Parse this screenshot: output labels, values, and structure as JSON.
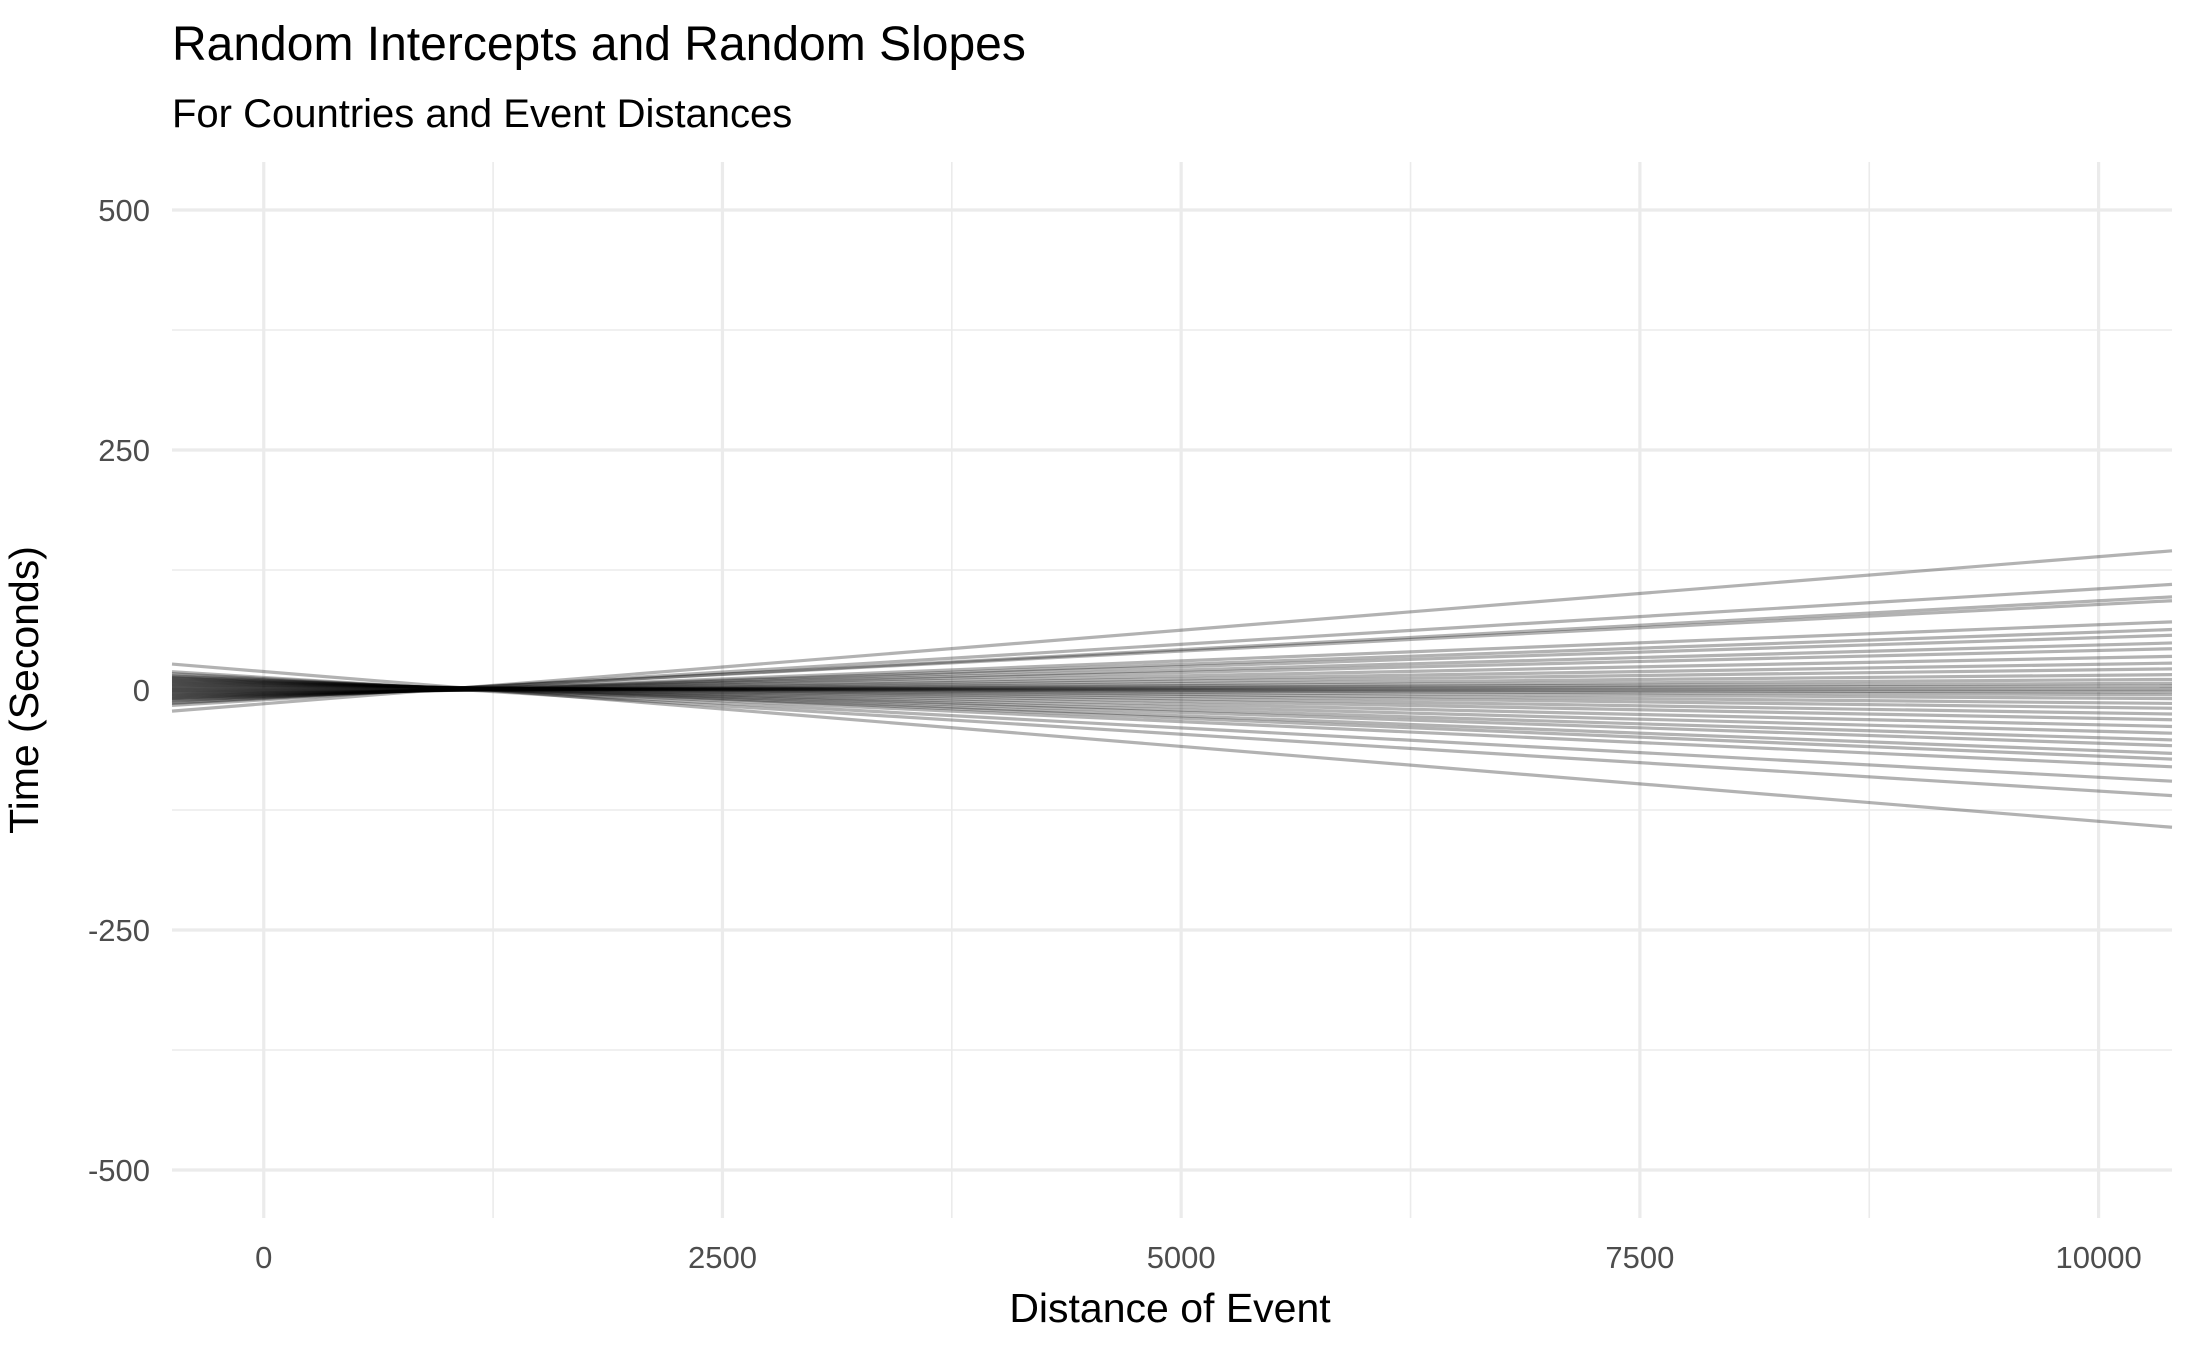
{
  "chart_data": {
    "type": "line",
    "title": "Random Intercepts and Random Slopes",
    "subtitle": "For Countries and Event Distances",
    "xlabel": "Distance of Event",
    "ylabel": "Time (Seconds)",
    "xlim": [
      -500,
      10400
    ],
    "ylim": [
      -550,
      550
    ],
    "x_ticks": [
      0,
      2500,
      5000,
      7500,
      10000
    ],
    "x_tick_labels": [
      "0",
      "2500",
      "5000",
      "7500",
      "10000"
    ],
    "y_ticks": [
      -500,
      -250,
      0,
      250,
      500
    ],
    "y_tick_labels": [
      "-500",
      "-250",
      "0",
      "250",
      "500"
    ],
    "x_minor_ticks": [
      1250,
      3750,
      6250,
      8750
    ],
    "y_minor_ticks": [
      -375,
      -125,
      125,
      375
    ],
    "grid": true,
    "legend": "none",
    "line_color": "#000000",
    "line_opacity": 0.3,
    "x": [
      -500,
      10400
    ],
    "series": [
      {
        "values": [
          -22,
          145
        ]
      },
      {
        "values": [
          -16,
          110
        ]
      },
      {
        "values": [
          -14,
          97
        ]
      },
      {
        "values": [
          -13,
          93
        ]
      },
      {
        "values": [
          -11,
          71
        ]
      },
      {
        "values": [
          -10,
          63
        ]
      },
      {
        "values": [
          -9,
          57
        ]
      },
      {
        "values": [
          -8,
          49
        ]
      },
      {
        "values": [
          -7,
          43
        ]
      },
      {
        "values": [
          -6,
          35
        ]
      },
      {
        "values": [
          -5,
          28
        ]
      },
      {
        "values": [
          -4,
          22
        ]
      },
      {
        "values": [
          -3,
          16
        ]
      },
      {
        "values": [
          -2,
          11
        ]
      },
      {
        "values": [
          -1,
          7
        ]
      },
      {
        "values": [
          0,
          4
        ]
      },
      {
        "values": [
          1,
          1
        ]
      },
      {
        "values": [
          2,
          -2
        ]
      },
      {
        "values": [
          3,
          -5
        ]
      },
      {
        "values": [
          4,
          -9
        ]
      },
      {
        "values": [
          5,
          -14
        ]
      },
      {
        "values": [
          6,
          -19
        ]
      },
      {
        "values": [
          7,
          -25
        ]
      },
      {
        "values": [
          8,
          -31
        ]
      },
      {
        "values": [
          9,
          -38
        ]
      },
      {
        "values": [
          10,
          -45
        ]
      },
      {
        "values": [
          11,
          -52
        ]
      },
      {
        "values": [
          12,
          -58
        ]
      },
      {
        "values": [
          13,
          -66
        ]
      },
      {
        "values": [
          14,
          -72
        ]
      },
      {
        "values": [
          15,
          -80
        ]
      },
      {
        "values": [
          17,
          -95
        ]
      },
      {
        "values": [
          19,
          -110
        ]
      },
      {
        "values": [
          27,
          -143
        ]
      }
    ]
  }
}
